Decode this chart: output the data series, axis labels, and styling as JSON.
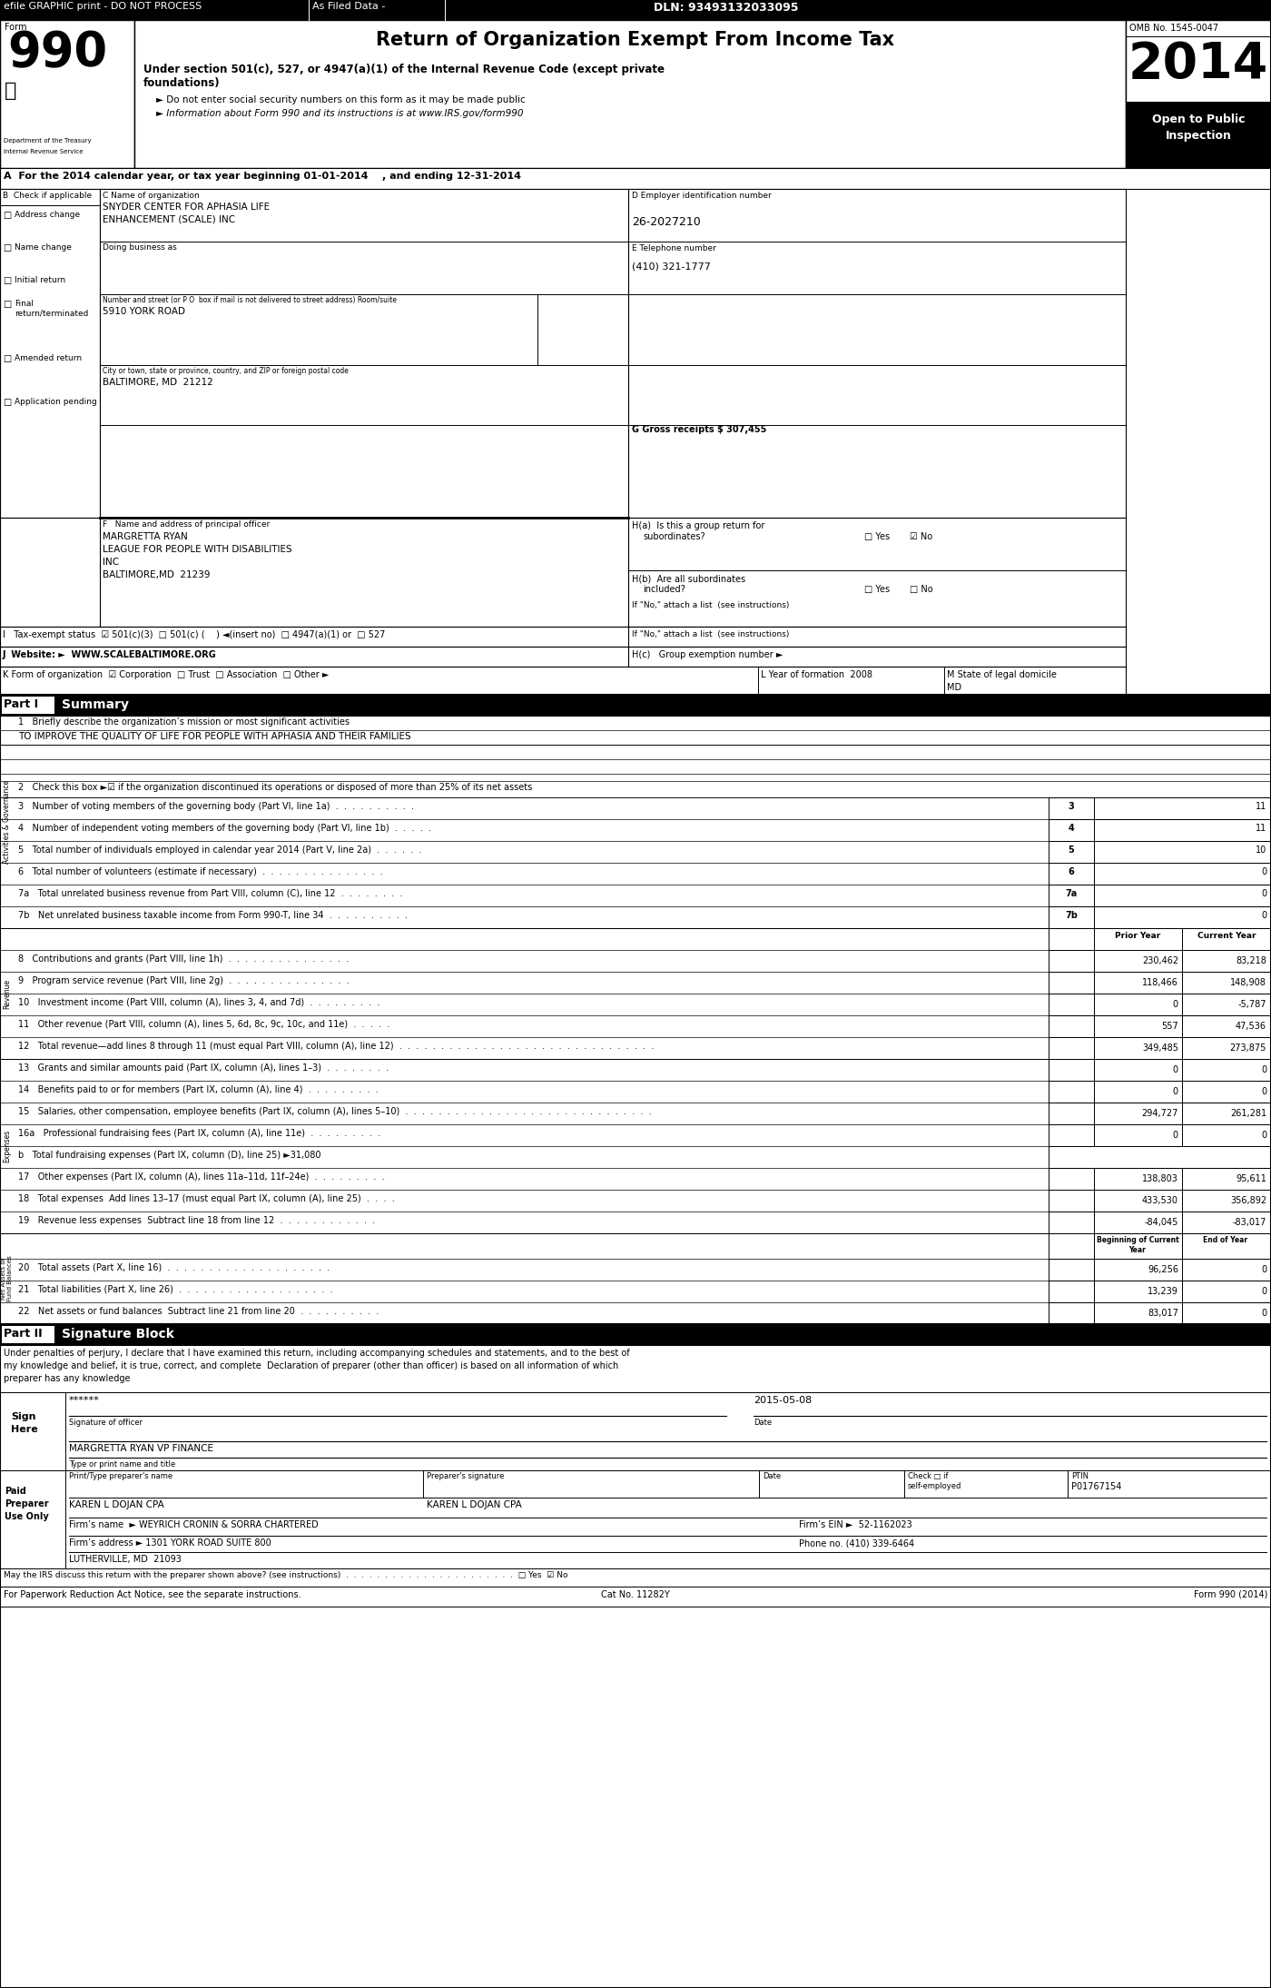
{
  "form_number": "990",
  "year": "2014",
  "omb": "OMB No. 1545-0047",
  "open_public": "Open to Public\nInspection",
  "dept_line1": "Department of the Treasury",
  "dept_line2": "Internal Revenue Service",
  "form_title": "Return of Organization Exempt From Income Tax",
  "form_subtitle1": "Under section 501(c), 527, or 4947(a)(1) of the Internal Revenue Code (except private",
  "form_subtitle2": "foundations)",
  "bullet1": "► Do not enter social security numbers on this form as it may be made public",
  "bullet2": "► Information about Form 990 and its instructions is at www.IRS.gov/form990",
  "section_a": "A  For the 2014 calendar year, or tax year beginning 01-01-2014    , and ending 12-31-2014",
  "org_name_label": "C Name of organization",
  "org_name1": "SNYDER CENTER FOR APHASIA LIFE",
  "org_name2": "ENHANCEMENT (SCALE) INC",
  "dba_label": "Doing business as",
  "address_label": "Number and street (or P O  box if mail is not delivered to street address) Room/suite",
  "address": "5910 YORK ROAD",
  "city_label": "City or town, state or province, country, and ZIP or foreign postal code",
  "city": "BALTIMORE, MD  21212",
  "ein_label": "D Employer identification number",
  "ein": "26-2027210",
  "phone_label": "E Telephone number",
  "phone": "(410) 321-1777",
  "gross_label": "G Gross receipts $ 307,455",
  "check_b_label": "B  Check if applicable",
  "checkbox_items": [
    {
      "label": "Address change",
      "checked": false
    },
    {
      "label": "Name change",
      "checked": false
    },
    {
      "label": "Initial return",
      "checked": false
    },
    {
      "label": "Final\nreturn/terminated",
      "checked": false
    },
    {
      "label": "Amended return",
      "checked": false
    },
    {
      "label": "Application pending",
      "checked": false
    }
  ],
  "principal_label": "F   Name and address of principal officer",
  "principal1": "MARGRETTA RYAN",
  "principal2": "LEAGUE FOR PEOPLE WITH DISABILITIES",
  "principal3": "INC",
  "principal4": "BALTIMORE,MD  21239",
  "ha_line1": "H(a)  Is this a group return for",
  "ha_line2": "subordinates?",
  "ha_yes": "□ Yes",
  "ha_no": "☑ No",
  "hb_line1": "H(b)  Are all subordinates",
  "hb_line2": "included?",
  "hb_yes": "□ Yes",
  "hb_no": "□ No",
  "hb_note": "If \"No,\" attach a list  (see instructions)",
  "tax_exempt_label": "I   Tax-exempt status",
  "tax_501c3": "☑ 501(c)(3)",
  "tax_501c": "□ 501(c) (    ) ◄(insert no)",
  "tax_4947": "□ 4947(a)(1) or",
  "tax_527": "□ 527",
  "website_label": "J  Website: ►  WWW.SCALEBALTIMORE.ORG",
  "hc_label": "H(c)   Group exemption number ►",
  "form_org_label": "K Form of organization",
  "form_org_corp": "☑ Corporation",
  "form_org_trust": "□ Trust",
  "form_org_assoc": "□ Association",
  "form_org_other": "□ Other ►",
  "year_formed": "L Year of formation  2008",
  "state_dom_label": "M State of legal domicile",
  "state_dom": "MD",
  "part1_label": "Part I",
  "part1_title": "Summary",
  "line1_label": "1   Briefly describe the organization’s mission or most significant activities",
  "line1_val": "TO IMPROVE THE QUALITY OF LIFE FOR PEOPLE WITH APHASIA AND THEIR FAMILIES",
  "line2_label": "2   Check this box ►☑ if the organization discontinued its operations or disposed of more than 25% of its net assets",
  "lines_summary": [
    {
      "num": "3",
      "label": "Number of voting members of the governing body (Part VI, line 1a)  .  .  .  .  .  .  .  .  .  .",
      "val": "11"
    },
    {
      "num": "4",
      "label": "Number of independent voting members of the governing body (Part VI, line 1b)  .  .  .  .  .",
      "val": "11"
    },
    {
      "num": "5",
      "label": "Total number of individuals employed in calendar year 2014 (Part V, line 2a)  .  .  .  .  .  .",
      "val": "10"
    },
    {
      "num": "6",
      "label": "Total number of volunteers (estimate if necessary)  .  .  .  .  .  .  .  .  .  .  .  .  .  .  .",
      "val": "0"
    },
    {
      "num": "7a",
      "label": "Total unrelated business revenue from Part VIII, column (C), line 12  .  .  .  .  .  .  .  .",
      "val": "0"
    },
    {
      "num": "7b",
      "label": "Net unrelated business taxable income from Form 990-T, line 34  .  .  .  .  .  .  .  .  .  .",
      "val": "0"
    }
  ],
  "revenue_header": [
    "Prior Year",
    "Current Year"
  ],
  "revenue_lines": [
    {
      "num": "8",
      "label": "Contributions and grants (Part VIII, line 1h)  .  .  .  .  .  .  .  .  .  .  .  .  .  .  .",
      "prior": "230,462",
      "current": "83,218"
    },
    {
      "num": "9",
      "label": "Program service revenue (Part VIII, line 2g)  .  .  .  .  .  .  .  .  .  .  .  .  .  .  .",
      "prior": "118,466",
      "current": "148,908"
    },
    {
      "num": "10",
      "label": "Investment income (Part VIII, column (A), lines 3, 4, and 7d)  .  .  .  .  .  .  .  .  .",
      "prior": "0",
      "current": "-5,787"
    },
    {
      "num": "11",
      "label": "Other revenue (Part VIII, column (A), lines 5, 6d, 8c, 9c, 10c, and 11e)  .  .  .  .  .",
      "prior": "557",
      "current": "47,536"
    },
    {
      "num": "12",
      "label": "Total revenue—add lines 8 through 11 (must equal Part VIII, column (A), line 12)  .  .  .  .  .  .  .  .  .  .  .  .  .  .  .  .  .  .  .  .  .  .  .  .  .  .  .  .  .  .  .",
      "prior": "349,485",
      "current": "273,875"
    }
  ],
  "expense_lines": [
    {
      "num": "13",
      "label": "Grants and similar amounts paid (Part IX, column (A), lines 1–3)  .  .  .  .  .  .  .  .",
      "prior": "0",
      "current": "0"
    },
    {
      "num": "14",
      "label": "Benefits paid to or for members (Part IX, column (A), line 4)  .  .  .  .  .  .  .  .  .",
      "prior": "0",
      "current": "0"
    },
    {
      "num": "15",
      "label": "Salaries, other compensation, employee benefits (Part IX, column (A), lines 5–10)  .  .  .  .  .  .  .  .  .  .  .  .  .  .  .  .  .  .  .  .  .  .  .  .  .  .  .  .  .  .",
      "prior": "294,727",
      "current": "261,281"
    },
    {
      "num": "16a",
      "label": "Professional fundraising fees (Part IX, column (A), line 11e)  .  .  .  .  .  .  .  .  .",
      "prior": "0",
      "current": "0"
    },
    {
      "num": "b",
      "label": "Total fundraising expenses (Part IX, column (D), line 25) ►31,080",
      "prior": "",
      "current": ""
    },
    {
      "num": "17",
      "label": "Other expenses (Part IX, column (A), lines 11a–11d, 11f–24e)  .  .  .  .  .  .  .  .  .",
      "prior": "138,803",
      "current": "95,611"
    },
    {
      "num": "18",
      "label": "Total expenses  Add lines 13–17 (must equal Part IX, column (A), line 25)  .  .  .  .",
      "prior": "433,530",
      "current": "356,892"
    },
    {
      "num": "19",
      "label": "Revenue less expenses  Subtract line 18 from line 12  .  .  .  .  .  .  .  .  .  .  .  .",
      "prior": "-84,045",
      "current": "-83,017"
    }
  ],
  "net_asset_lines": [
    {
      "num": "20",
      "label": "Total assets (Part X, line 16)  .  .  .  .  .  .  .  .  .  .  .  .  .  .  .  .  .  .  .  .",
      "begin": "96,256",
      "end": "0"
    },
    {
      "num": "21",
      "label": "Total liabilities (Part X, line 26)  .  .  .  .  .  .  .  .  .  .  .  .  .  .  .  .  .  .  .",
      "begin": "13,239",
      "end": "0"
    },
    {
      "num": "22",
      "label": "Net assets or fund balances  Subtract line 21 from line 20  .  .  .  .  .  .  .  .  .  .",
      "begin": "83,017",
      "end": "0"
    }
  ],
  "part2_label": "Part II",
  "part2_title": "Signature Block",
  "part2_text1": "Under penalties of perjury, I declare that I have examined this return, including accompanying schedules and statements, and to the best of",
  "part2_text2": "my knowledge and belief, it is true, correct, and complete  Declaration of preparer (other than officer) is based on all information of which",
  "part2_text3": "preparer has any knowledge",
  "sig_stars": "******",
  "sig_date": "2015-05-08",
  "sig_name": "MARGRETTA RYAN VP FINANCE",
  "prep_name": "KAREN L DOJAN CPA",
  "prep_sig": "KAREN L DOJAN CPA",
  "prep_ptin": "P01767154",
  "firm_name": "Firm’s name  ► WEYRICH CRONIN & SORRA CHARTERED",
  "firm_ein": "Firm’s EIN ►  52-1162023",
  "firm_addr": "Firm’s address ► 1301 YORK ROAD SUITE 800",
  "firm_city": "LUTHERVILLE, MD  21093",
  "firm_phone": "Phone no. (410) 339-6464",
  "cat_no": "Cat No. 11282Y",
  "form_footer": "Form 990 (2014)",
  "bg_color": "#ffffff"
}
